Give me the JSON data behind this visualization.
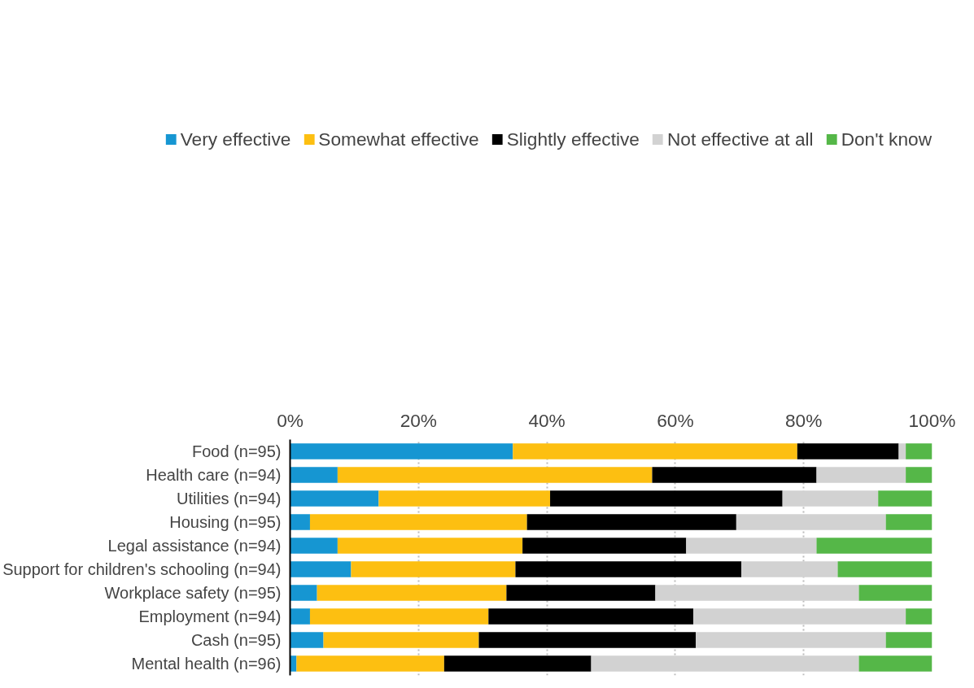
{
  "chart_data": {
    "type": "bar",
    "orientation": "horizontal",
    "stacked": true,
    "categories": [
      "Food (n=95)",
      "Health care (n=94)",
      "Utilities (n=94)",
      "Housing (n=95)",
      "Legal assistance (n=94)",
      "Support for children's schooling (n=94)",
      "Workplace safety (n=95)",
      "Employment (n=94)",
      "Cash (n=95)",
      "Mental health (n=96)"
    ],
    "series": [
      {
        "name": "Very effective",
        "color": "#1696d2",
        "values": [
          34.7,
          7.4,
          13.8,
          3.1,
          7.4,
          9.5,
          4.2,
          3.1,
          5.2,
          1.0
        ]
      },
      {
        "name": "Somewhat effective",
        "color": "#fdbf11",
        "values": [
          44.3,
          49.0,
          26.7,
          33.8,
          28.8,
          25.6,
          29.5,
          27.8,
          24.2,
          23.0
        ]
      },
      {
        "name": "Slightly effective",
        "color": "#000000",
        "values": [
          15.8,
          25.6,
          36.2,
          32.6,
          25.5,
          35.2,
          23.2,
          31.9,
          33.8,
          22.9
        ]
      },
      {
        "name": "Not effective at all",
        "color": "#d2d2d2",
        "values": [
          1.1,
          13.9,
          14.9,
          23.3,
          20.3,
          15.0,
          31.7,
          33.1,
          29.6,
          41.7
        ]
      },
      {
        "name": "Don't know",
        "color": "#55b748",
        "values": [
          4.1,
          4.1,
          8.4,
          7.2,
          18.0,
          14.7,
          11.4,
          4.1,
          7.2,
          11.4
        ]
      }
    ],
    "xlim": [
      0,
      100
    ],
    "xticks": [
      {
        "value": 0,
        "label": "0%"
      },
      {
        "value": 20,
        "label": "20%"
      },
      {
        "value": 40,
        "label": "40%"
      },
      {
        "value": 60,
        "label": "60%"
      },
      {
        "value": 80,
        "label": "80%"
      },
      {
        "value": 100,
        "label": "100%"
      }
    ],
    "grid": "x",
    "legend": "top"
  }
}
